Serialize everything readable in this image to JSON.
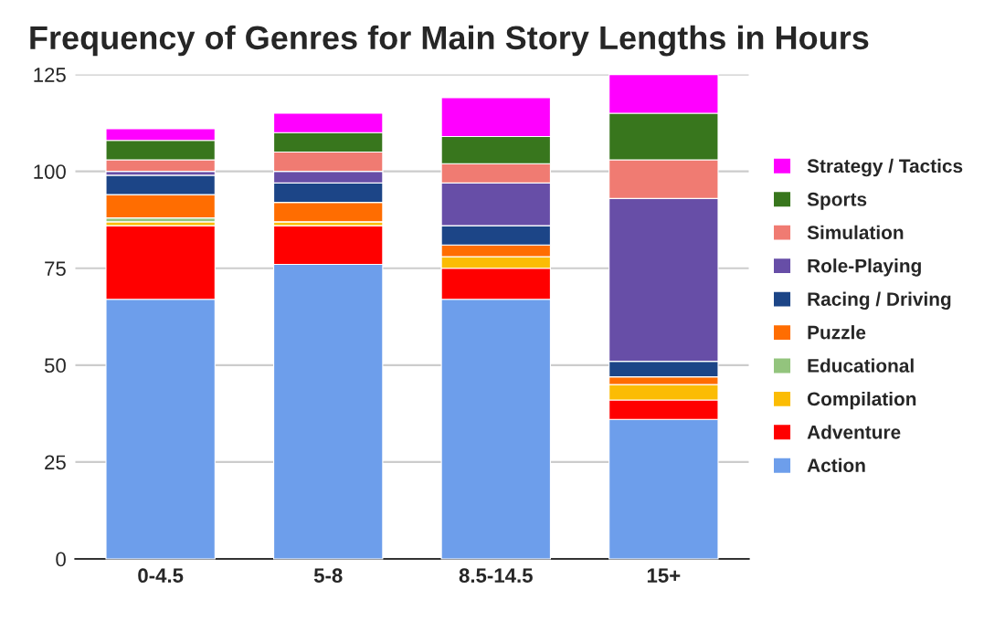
{
  "chart_data": {
    "type": "bar",
    "stacked": true,
    "title": "Frequency of Genres for Main Story Lengths in Hours",
    "categories": [
      "0-4.5",
      "5-8",
      "8.5-14.5",
      "15+"
    ],
    "series": [
      {
        "name": "Action",
        "color": "#6d9eeb",
        "values": [
          67,
          76,
          67,
          36
        ]
      },
      {
        "name": "Adventure",
        "color": "#ff0000",
        "values": [
          19,
          10,
          8,
          5
        ]
      },
      {
        "name": "Compilation",
        "color": "#fbbc04",
        "values": [
          1,
          1,
          3,
          4
        ]
      },
      {
        "name": "Educational",
        "color": "#93c47d",
        "values": [
          1,
          0,
          0,
          0
        ]
      },
      {
        "name": "Puzzle",
        "color": "#ff6d01",
        "values": [
          6,
          5,
          3,
          2
        ]
      },
      {
        "name": "Racing / Driving",
        "color": "#1c4587",
        "values": [
          5,
          5,
          5,
          4
        ]
      },
      {
        "name": "Role-Playing",
        "color": "#674ea7",
        "values": [
          1,
          3,
          11,
          42
        ]
      },
      {
        "name": "Simulation",
        "color": "#f07b72",
        "values": [
          3,
          5,
          5,
          10
        ]
      },
      {
        "name": "Sports",
        "color": "#38761d",
        "values": [
          5,
          5,
          7,
          12
        ]
      },
      {
        "name": "Strategy / Tactics",
        "color": "#ff00ff",
        "values": [
          3,
          5,
          10,
          10
        ]
      }
    ],
    "ylim": [
      0,
      125
    ],
    "yticks": [
      0,
      25,
      50,
      75,
      100,
      125
    ],
    "grid": "y",
    "legend": "right"
  }
}
